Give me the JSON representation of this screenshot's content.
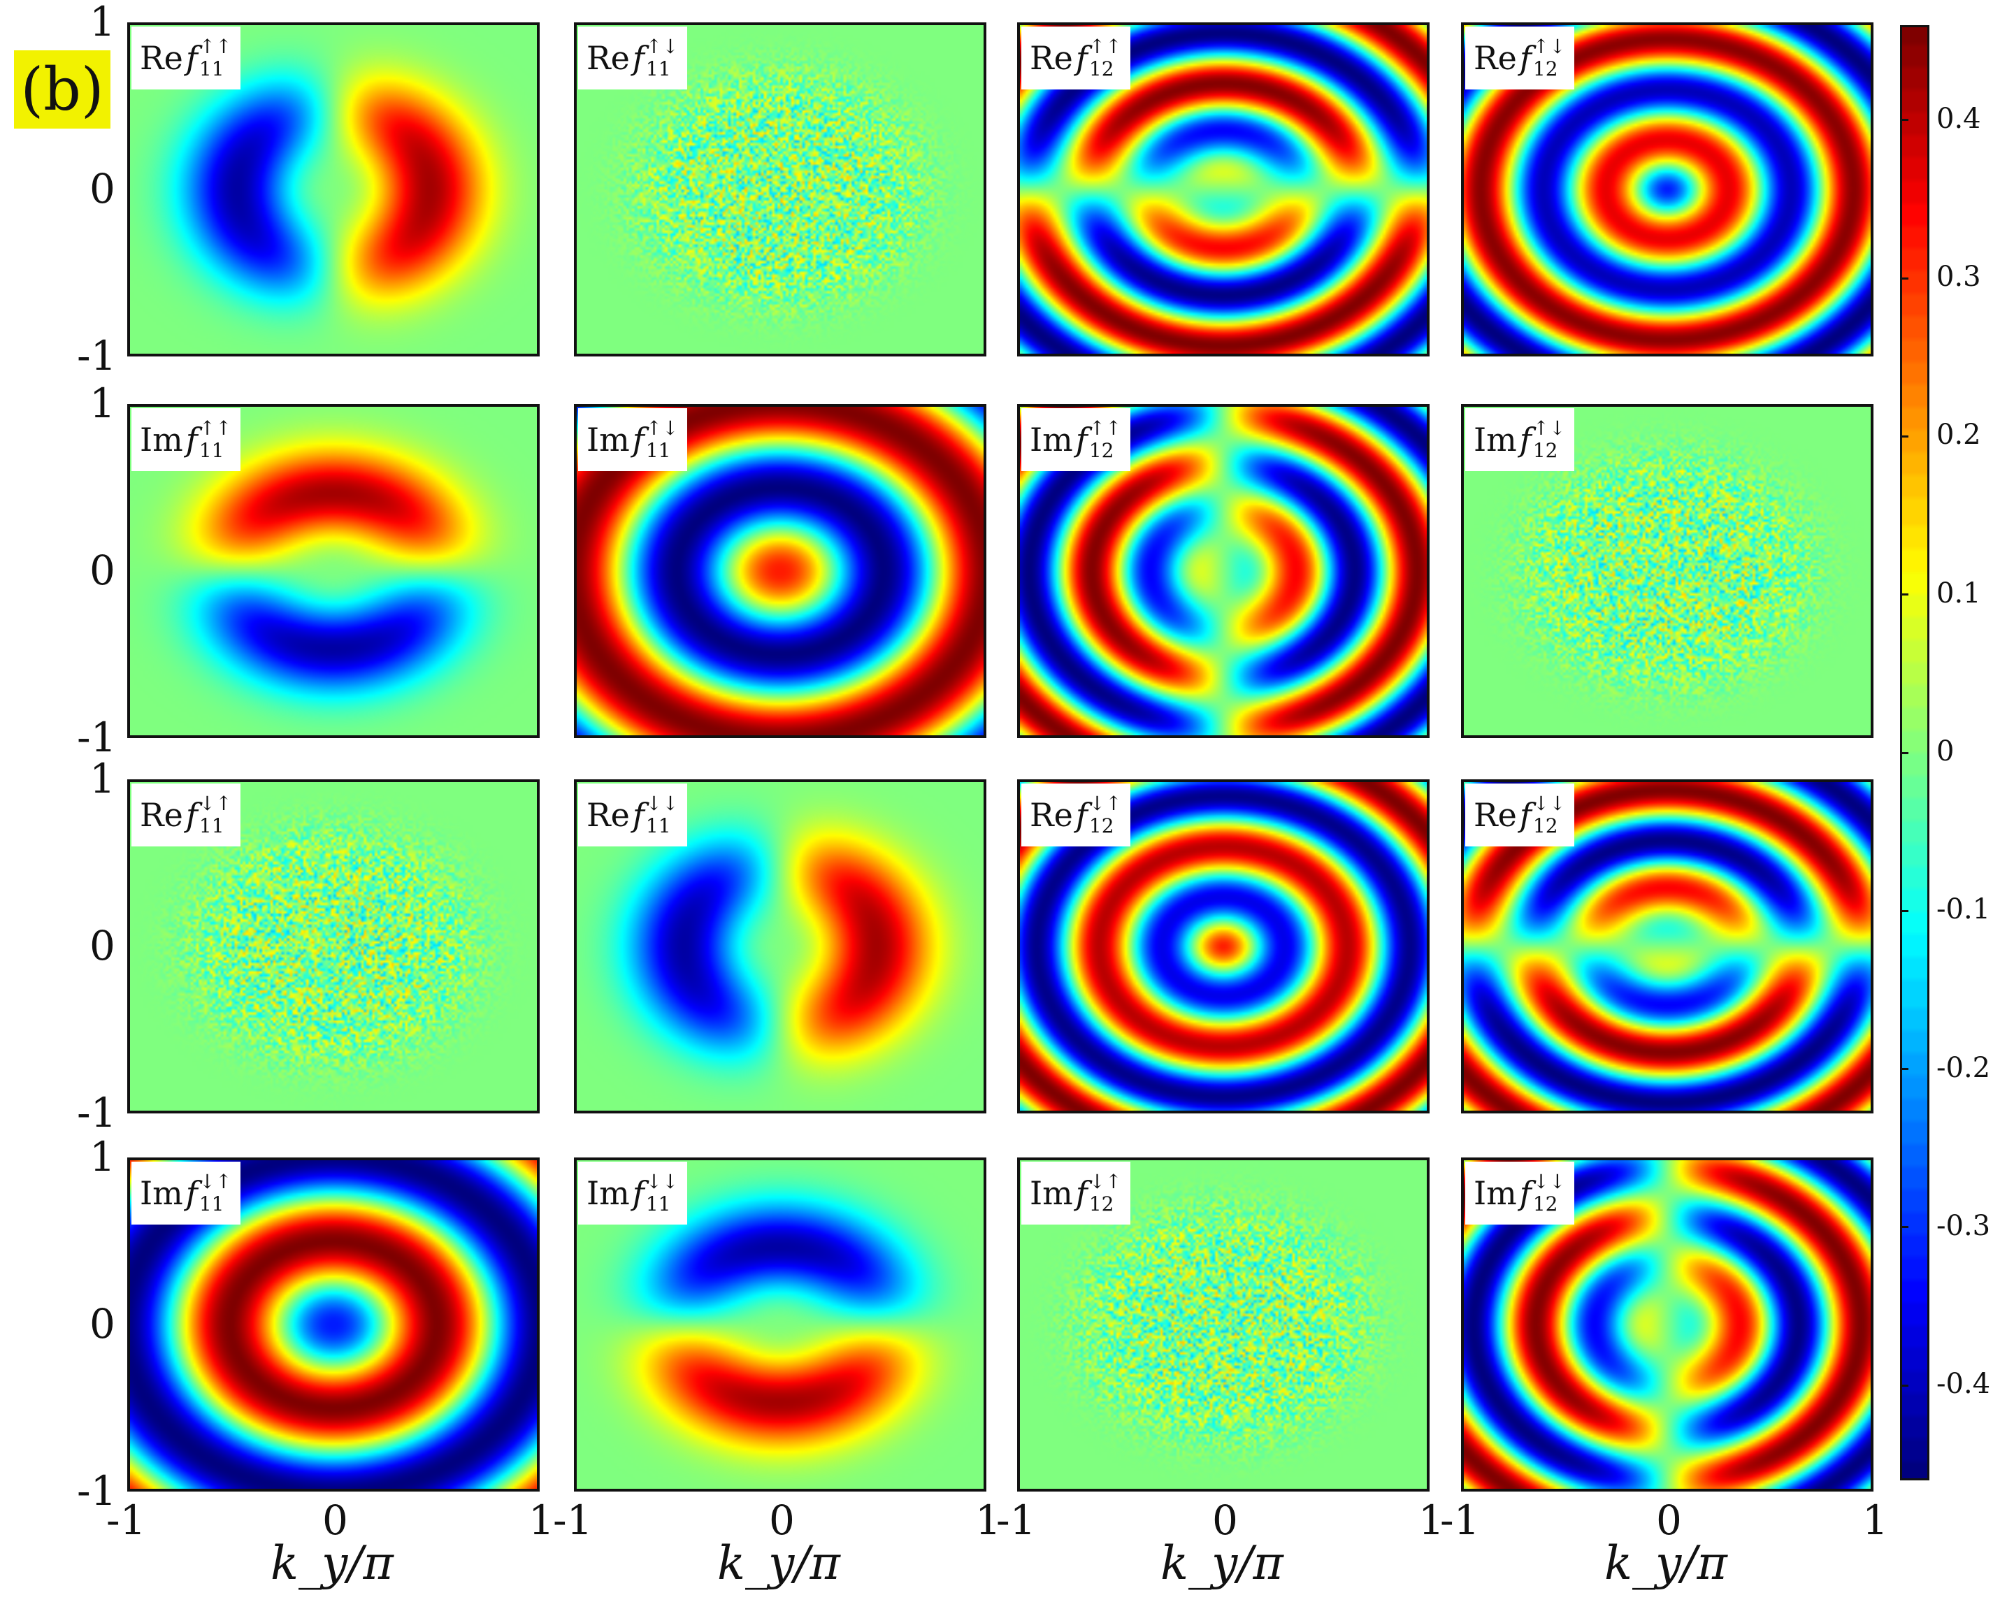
{
  "panel_tag": "(b)",
  "colors": {
    "tag_background": "#f2f200",
    "frame": "#111111"
  },
  "chart_data": {
    "type": "heatmap",
    "colormap": "jet",
    "grid": "4x4",
    "clim": [
      -0.46,
      0.46
    ],
    "x_range": [
      -1,
      1
    ],
    "y_range": [
      -1,
      1
    ],
    "xlabel": "k_y/π",
    "x_ticks": [
      "-1",
      "0",
      "1"
    ],
    "y_ticks": [
      "1",
      "0",
      "-1"
    ],
    "colorbar": {
      "ticks": [
        0.4,
        0.3,
        0.2,
        0.1,
        0,
        -0.1,
        -0.2,
        -0.3,
        -0.4
      ],
      "tick_labels": [
        "0.4",
        "0.3",
        "0.2",
        "0.1",
        "0",
        "-0.1",
        "-0.2",
        "-0.3",
        "-0.4"
      ]
    },
    "panels": [
      {
        "part": "Re",
        "sub": "11",
        "sup": "↑↑",
        "pattern": "dipole-x",
        "amp": 1.0
      },
      {
        "part": "Re",
        "sub": "11",
        "sup": "↑↓",
        "pattern": "noise",
        "amp": 0
      },
      {
        "part": "Re",
        "sub": "12",
        "sup": "↑↑",
        "pattern": "multi-y",
        "amp": 1.0
      },
      {
        "part": "Re",
        "sub": "12",
        "sup": "↑↓",
        "pattern": "rings-b",
        "amp": 1.0
      },
      {
        "part": "Im",
        "sub": "11",
        "sup": "↑↑",
        "pattern": "dipole-y",
        "amp": 1.0
      },
      {
        "part": "Im",
        "sub": "11",
        "sup": "↑↓",
        "pattern": "rings-a",
        "amp": -1.0
      },
      {
        "part": "Im",
        "sub": "12",
        "sup": "↑↑",
        "pattern": "multi-x",
        "amp": 1.0
      },
      {
        "part": "Im",
        "sub": "12",
        "sup": "↑↓",
        "pattern": "noise",
        "amp": 0
      },
      {
        "part": "Re",
        "sub": "11",
        "sup": "↓↑",
        "pattern": "noise",
        "amp": 0
      },
      {
        "part": "Re",
        "sub": "11",
        "sup": "↓↓",
        "pattern": "dipole-x",
        "amp": 1.0
      },
      {
        "part": "Re",
        "sub": "12",
        "sup": "↓↑",
        "pattern": "rings-b",
        "amp": -1.0
      },
      {
        "part": "Re",
        "sub": "12",
        "sup": "↓↓",
        "pattern": "multi-y",
        "amp": -1.0
      },
      {
        "part": "Im",
        "sub": "11",
        "sup": "↓↑",
        "pattern": "rings-a",
        "amp": 1.0
      },
      {
        "part": "Im",
        "sub": "11",
        "sup": "↓↓",
        "pattern": "dipole-y",
        "amp": -1.0
      },
      {
        "part": "Im",
        "sub": "12",
        "sup": "↓↑",
        "pattern": "noise",
        "amp": 0
      },
      {
        "part": "Im",
        "sub": "12",
        "sup": "↓↓",
        "pattern": "multi-x",
        "amp": 1.0
      }
    ]
  }
}
